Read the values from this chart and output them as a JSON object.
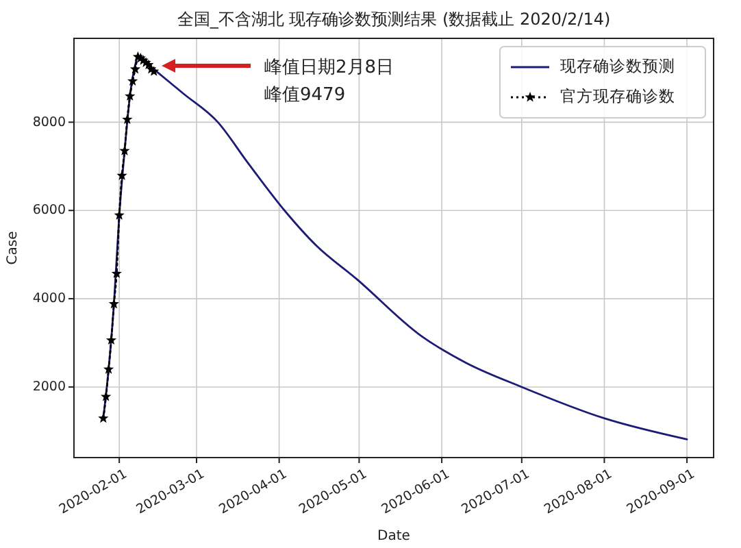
{
  "chart_data": {
    "type": "line",
    "title": "全国_不含湖北 现存确诊数预测结果 (数据截止 2020/2/14)",
    "xlabel": "Date",
    "ylabel": "Case",
    "xlim": [
      "2020-01-15",
      "2020-09-11"
    ],
    "ylim": [
      400,
      9900
    ],
    "xticks": [
      "2020-02-01",
      "2020-03-01",
      "2020-04-01",
      "2020-05-01",
      "2020-06-01",
      "2020-07-01",
      "2020-08-01",
      "2020-09-01"
    ],
    "yticks": [
      2000,
      4000,
      6000,
      8000
    ],
    "grid": true,
    "legend": "top right",
    "annotations": [
      "峰值日期2月8日",
      "峰值9479"
    ],
    "series": [
      {
        "name": "现存确诊数预测",
        "color": "#1c1c78",
        "line_style": "solid",
        "marker": "none",
        "x": [
          "2020-01-26",
          "2020-01-28",
          "2020-01-30",
          "2020-02-01",
          "2020-02-03",
          "2020-02-05",
          "2020-02-07",
          "2020-02-08",
          "2020-02-10",
          "2020-02-15",
          "2020-02-25",
          "2020-03-09",
          "2020-03-20",
          "2020-04-03",
          "2020-04-15",
          "2020-04-30",
          "2020-05-24",
          "2020-06-10",
          "2020-07-01",
          "2020-08-01",
          "2020-09-01"
        ],
        "values": [
          1290,
          2400,
          3880,
          5890,
          7350,
          8590,
          9300,
          9480,
          9400,
          9150,
          8650,
          8000,
          7100,
          6000,
          5200,
          4450,
          3170,
          2550,
          2000,
          1290,
          813
        ]
      },
      {
        "name": "官方现存确诊数",
        "color": "#000000",
        "line_style": "dotted",
        "marker": "star",
        "x": [
          "2020-01-26",
          "2020-01-27",
          "2020-01-28",
          "2020-01-29",
          "2020-01-30",
          "2020-01-31",
          "2020-02-01",
          "2020-02-02",
          "2020-02-03",
          "2020-02-04",
          "2020-02-05",
          "2020-02-06",
          "2020-02-07",
          "2020-02-08",
          "2020-02-09",
          "2020-02-10",
          "2020-02-11",
          "2020-02-12",
          "2020-02-13",
          "2020-02-14"
        ],
        "values": [
          1290,
          1780,
          2400,
          3060,
          3880,
          4570,
          5890,
          6790,
          7350,
          8060,
          8590,
          8930,
          9200,
          9480,
          9450,
          9400,
          9350,
          9300,
          9200,
          9150
        ]
      }
    ]
  }
}
